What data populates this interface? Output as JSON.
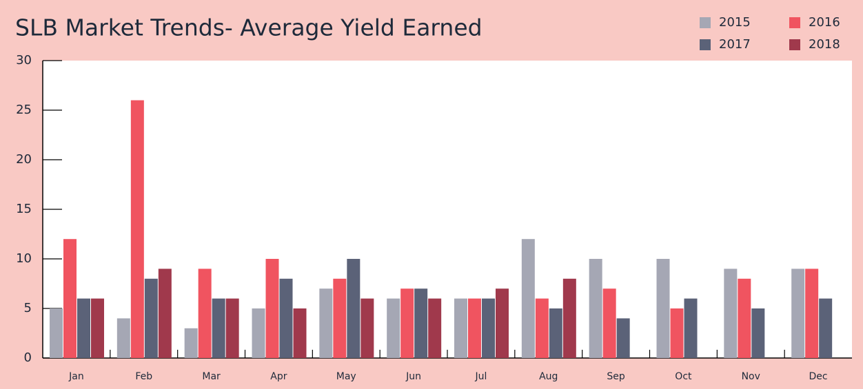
{
  "chart_data": {
    "type": "bar",
    "title": "SLB Market Trends- Average Yield Earned",
    "categories": [
      "Jan",
      "Feb",
      "Mar",
      "Apr",
      "May",
      "Jun",
      "Jul",
      "Aug",
      "Sep",
      "Oct",
      "Nov",
      "Dec"
    ],
    "series": [
      {
        "name": "2015",
        "color": "#a5a7b4",
        "values": [
          5,
          4,
          3,
          5,
          7,
          6,
          6,
          12,
          10,
          10,
          9,
          9
        ]
      },
      {
        "name": "2016",
        "color": "#f05460",
        "values": [
          12,
          26,
          9,
          10,
          8,
          7,
          6,
          6,
          7,
          5,
          8,
          9
        ]
      },
      {
        "name": "2017",
        "color": "#5b6278",
        "values": [
          6,
          8,
          6,
          8,
          10,
          7,
          6,
          5,
          4,
          6,
          5,
          6
        ]
      },
      {
        "name": "2018",
        "color": "#a0394c",
        "values": [
          6,
          9,
          6,
          5,
          6,
          6,
          7,
          8,
          null,
          null,
          null,
          null
        ]
      }
    ],
    "ylim": [
      0,
      30
    ],
    "yticks": [
      0,
      5,
      10,
      15,
      20,
      25,
      30
    ],
    "legend": "top-right"
  }
}
